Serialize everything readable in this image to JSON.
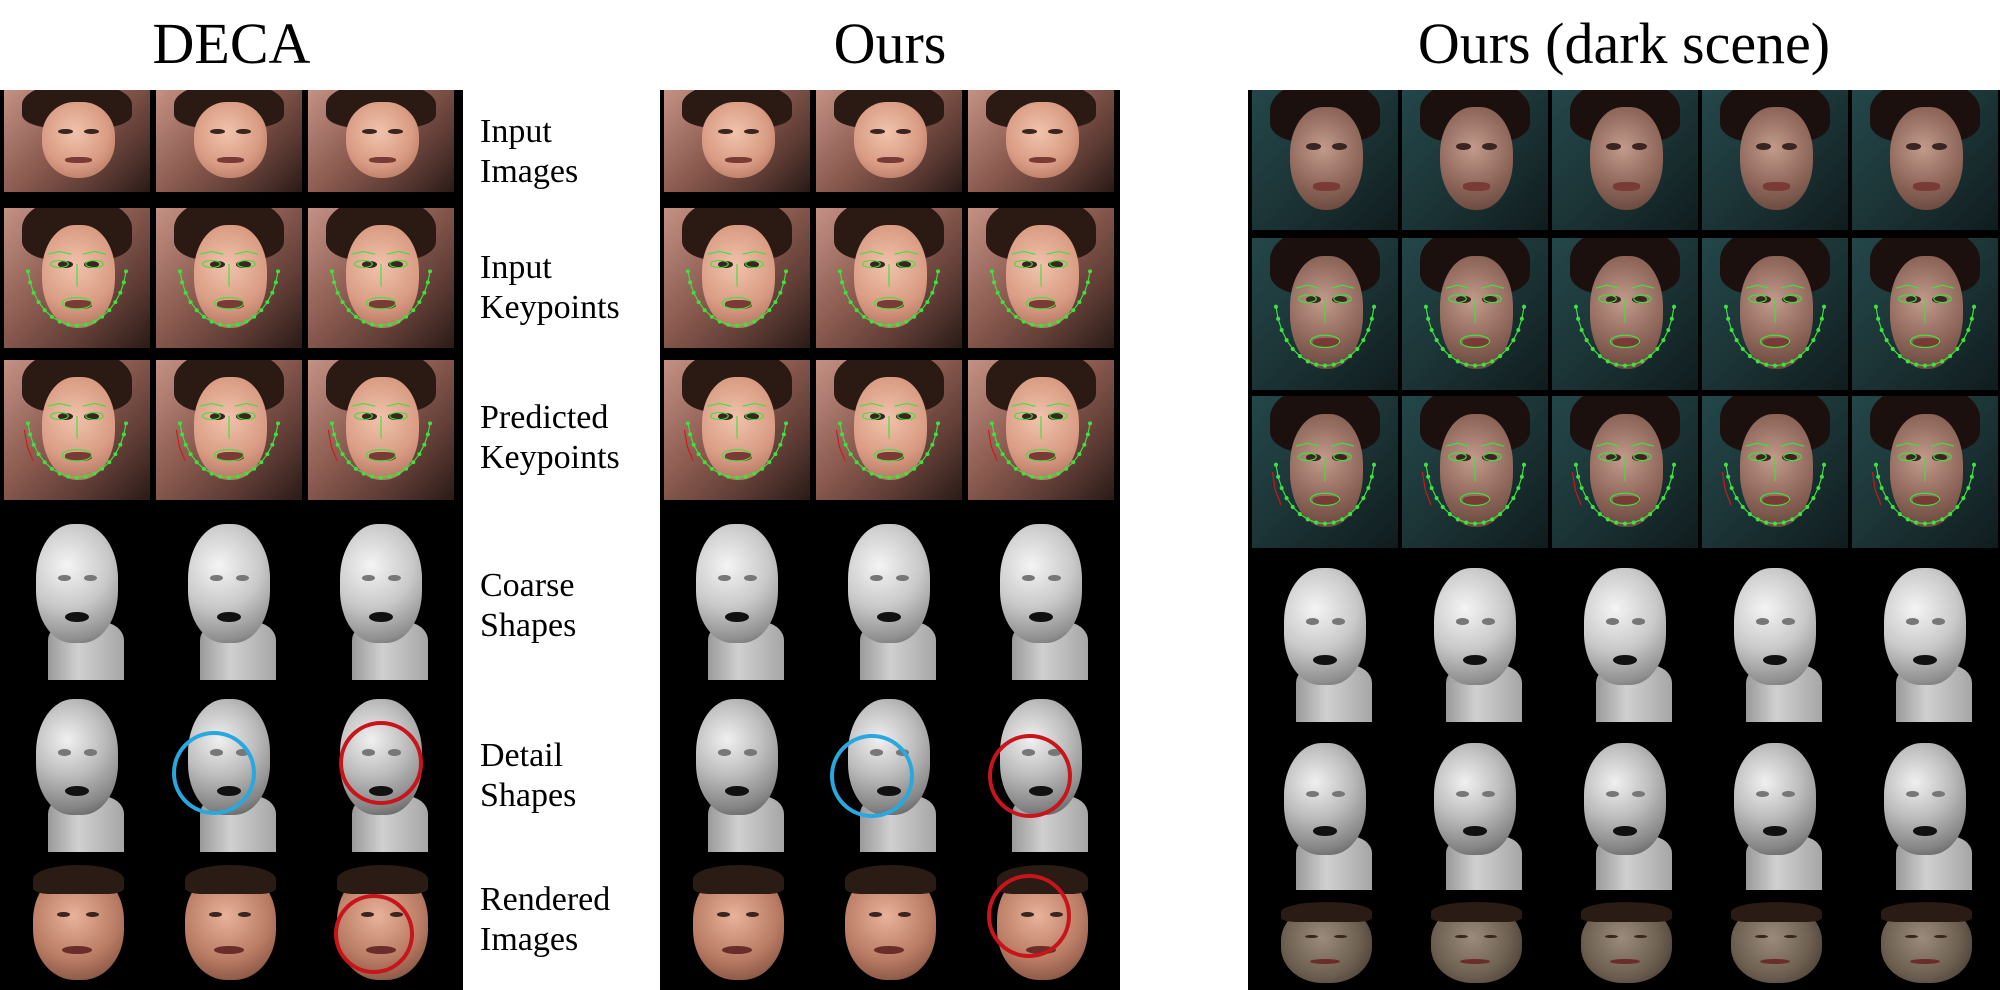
{
  "titles": {
    "deca": "DECA",
    "ours": "Ours",
    "dark": "Ours (dark scene)"
  },
  "rows": [
    {
      "key": "input_images",
      "line1": "Input",
      "line2": "Images"
    },
    {
      "key": "input_keypoints",
      "line1": "Input",
      "line2": "Keypoints"
    },
    {
      "key": "predicted_keypoints",
      "line1": "Predicted",
      "line2": "Keypoints"
    },
    {
      "key": "coarse_shapes",
      "line1": "Coarse",
      "line2": "Shapes"
    },
    {
      "key": "detail_shapes",
      "line1": "Detail",
      "line2": "Shapes"
    },
    {
      "key": "rendered_images",
      "line1": "Rendered",
      "line2": "Images"
    }
  ],
  "colors": {
    "keypoints": "#3fe03f",
    "highlight_blue": "#29a8e0",
    "highlight_red": "#c8141a"
  }
}
